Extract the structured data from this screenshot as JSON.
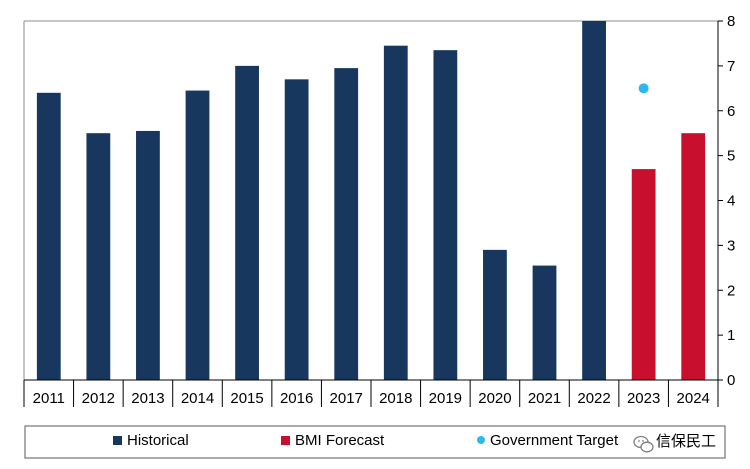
{
  "chart_data": {
    "type": "bar",
    "categories": [
      "2011",
      "2012",
      "2013",
      "2014",
      "2015",
      "2016",
      "2017",
      "2018",
      "2019",
      "2020",
      "2021",
      "2022",
      "2023",
      "2024"
    ],
    "series": [
      {
        "name": "Historical",
        "color": "#17375e",
        "values": [
          6.4,
          5.5,
          5.55,
          6.45,
          7.0,
          6.7,
          6.95,
          7.45,
          7.35,
          2.9,
          2.55,
          8.0,
          null,
          null
        ]
      },
      {
        "name": "BMI Forecast",
        "color": "#c8102e",
        "values": [
          null,
          null,
          null,
          null,
          null,
          null,
          null,
          null,
          null,
          null,
          null,
          null,
          4.7,
          5.5
        ]
      },
      {
        "name": "Government Target",
        "color": "#2eb8f0",
        "marker": "dot",
        "values": [
          null,
          null,
          null,
          null,
          null,
          null,
          null,
          null,
          null,
          null,
          null,
          null,
          6.5,
          null
        ]
      }
    ],
    "ylim": [
      0,
      8
    ],
    "yticks": [
      "0",
      "1",
      "2",
      "3",
      "4",
      "5",
      "6",
      "7",
      "8"
    ],
    "y_axis_side": "right",
    "grid": false,
    "legend": {
      "placement": "bottom",
      "entries": [
        "Historical",
        "BMI Forecast",
        "Government Target"
      ]
    },
    "title": "",
    "xlabel": "",
    "ylabel": ""
  },
  "watermark": {
    "icon": "wechat-icon",
    "text": "信保民工"
  }
}
